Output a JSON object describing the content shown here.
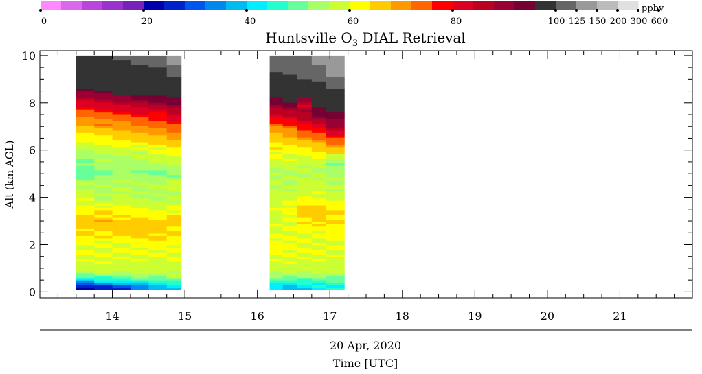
{
  "chart_data": {
    "type": "heatmap",
    "title_prefix": "Huntsville O",
    "title_sub": "3",
    "title_suffix": " DIAL Retrieval",
    "colorbar": {
      "unit": "ppbv",
      "colors": [
        "#ff88ff",
        "#dd66ee",
        "#bb44dd",
        "#9933cc",
        "#7722bb",
        "#0000aa",
        "#0022cc",
        "#0055ee",
        "#0088ee",
        "#00bbee",
        "#00eeff",
        "#22ffcc",
        "#66ff99",
        "#aaff66",
        "#ccff33",
        "#ffff00",
        "#ffcc00",
        "#ff9900",
        "#ff6600",
        "#ff0000",
        "#dd0022",
        "#bb0022",
        "#990033",
        "#770033",
        "#333333",
        "#666666",
        "#999999",
        "#bbbbbb",
        "#e0e0e0"
      ],
      "ticks": [
        {
          "label": "0",
          "index": 0
        },
        {
          "label": "20",
          "index": 5
        },
        {
          "label": "40",
          "index": 10
        },
        {
          "label": "60",
          "index": 15
        },
        {
          "label": "80",
          "index": 20
        },
        {
          "label": "100",
          "index": 25
        },
        {
          "label": "125",
          "index": 26
        },
        {
          "label": "150",
          "index": 27
        },
        {
          "label": "200",
          "index": 28
        },
        {
          "label": "300",
          "index": 29
        },
        {
          "label": "600",
          "index": 30
        }
      ]
    },
    "ylabel": "Alt (km AGL)",
    "ylim": [
      0,
      10
    ],
    "yticks": [
      "0",
      "2",
      "4",
      "6",
      "8",
      "10"
    ],
    "xlim": [
      13.0,
      22.0
    ],
    "xticks": [
      "14",
      "15",
      "16",
      "17",
      "18",
      "19",
      "20",
      "21"
    ],
    "xlabel_date": "20 Apr, 2020",
    "xlabel": "Time [UTC]",
    "profiles": {
      "alt_km": [
        0.2,
        0.4,
        0.6,
        0.8,
        1.0,
        1.5,
        2.0,
        2.5,
        3.0,
        3.5,
        4.0,
        4.5,
        5.0,
        5.5,
        6.0,
        6.5,
        7.0,
        7.5,
        8.0,
        8.5,
        9.0,
        9.5,
        10.0
      ],
      "blocks": [
        {
          "times": [
            13.5,
            13.75,
            14.0,
            14.25,
            14.5,
            14.75,
            14.95
          ],
          "ozone_ppbv": [
            [
              20,
              35,
              45,
              55,
              58,
              60,
              60,
              64,
              66,
              62,
              58,
              56,
              50,
              52,
              55,
              62,
              68,
              72,
              82,
              92,
              110,
              115,
              120
            ],
            [
              24,
              38,
              46,
              55,
              58,
              60,
              60,
              65,
              67,
              62,
              56,
              55,
              52,
              54,
              57,
              63,
              70,
              74,
              84,
              95,
              112,
              118,
              122
            ],
            [
              28,
              40,
              50,
              55,
              58,
              60,
              60,
              66,
              66,
              61,
              57,
              56,
              53,
              54,
              58,
              64,
              70,
              76,
              86,
              98,
              114,
              120,
              126
            ],
            [
              32,
              42,
              52,
              56,
              58,
              60,
              61,
              65,
              66,
              60,
              55,
              56,
              52,
              55,
              58,
              65,
              72,
              78,
              88,
              100,
              116,
              124,
              130
            ],
            [
              36,
              44,
              52,
              56,
              58,
              60,
              61,
              65,
              66,
              60,
              54,
              57,
              51,
              56,
              60,
              66,
              74,
              80,
              90,
              102,
              118,
              126,
              150
            ],
            [
              38,
              46,
              54,
              57,
              58,
              60,
              61,
              64,
              66,
              60,
              55,
              58,
              52,
              58,
              62,
              68,
              76,
              84,
              92,
              104,
              120,
              140,
              200
            ]
          ]
        },
        {
          "times": [
            16.17,
            16.35,
            16.55,
            16.75,
            16.95,
            17.2
          ],
          "ozone_ppbv": [
            [
              40,
              44,
              50,
              56,
              58,
              60,
              62,
              60,
              58,
              60,
              58,
              56,
              55,
              58,
              62,
              66,
              72,
              82,
              92,
              104,
              118,
              128,
              130
            ],
            [
              38,
              44,
              50,
              56,
              58,
              60,
              61,
              60,
              60,
              62,
              58,
              56,
              56,
              58,
              62,
              68,
              74,
              84,
              96,
              106,
              120,
              130,
              140
            ],
            [
              40,
              46,
              50,
              56,
              58,
              60,
              60,
              60,
              64,
              66,
              60,
              58,
              56,
              58,
              62,
              70,
              78,
              88,
              84,
              110,
              124,
              140,
              150
            ],
            [
              42,
              46,
              52,
              56,
              58,
              60,
              60,
              60,
              66,
              66,
              60,
              58,
              56,
              58,
              64,
              72,
              82,
              92,
              100,
              116,
              128,
              146,
              160
            ],
            [
              44,
              48,
              52,
              56,
              58,
              60,
              60,
              62,
              64,
              64,
              58,
              56,
              55,
              52,
              66,
              76,
              88,
              96,
              104,
              120,
              150,
              160,
              180
            ]
          ]
        }
      ]
    }
  }
}
